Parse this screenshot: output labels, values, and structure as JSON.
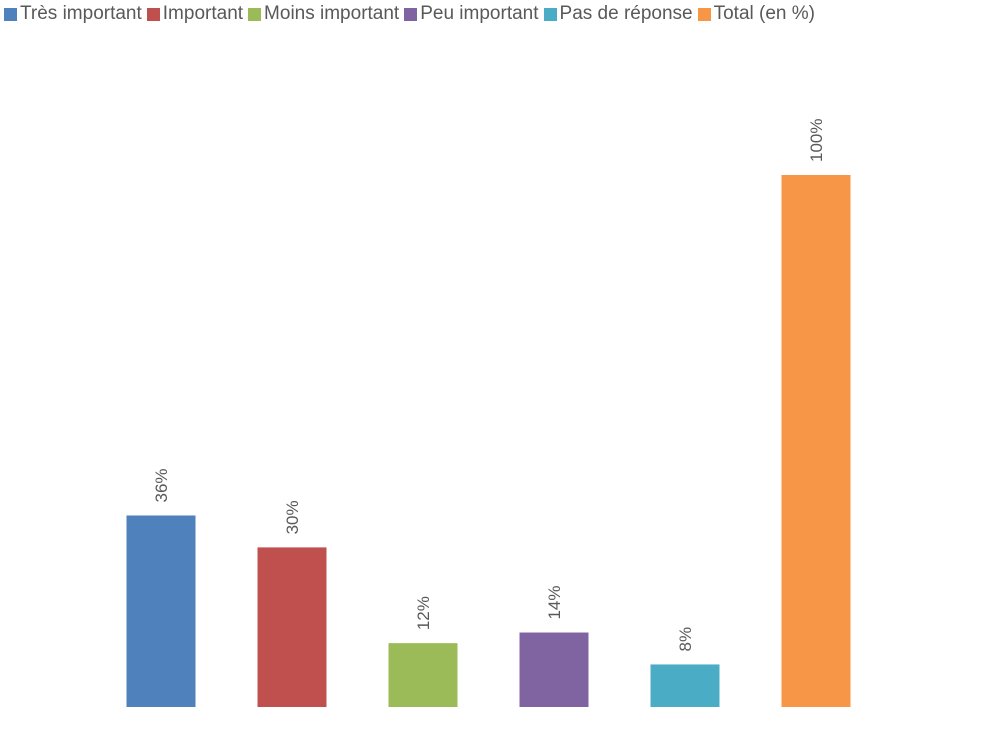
{
  "chart_data": {
    "type": "bar",
    "categories": [
      "Très important",
      "Important",
      "Moins important",
      "Peu important",
      "Pas de réponse",
      "Total (en %)"
    ],
    "values": [
      36,
      30,
      12,
      14,
      8,
      100
    ],
    "data_labels": [
      "36%",
      "30%",
      "12%",
      "14%",
      "8%",
      "100%"
    ],
    "colors": [
      "#4F81BD",
      "#C0504D",
      "#9BBB59",
      "#8064A2",
      "#4BACC6",
      "#F79646"
    ],
    "title": "",
    "xlabel": "",
    "ylabel": "",
    "ylim": [
      0,
      100
    ],
    "legend": "top",
    "grid": false,
    "axes_visible": false,
    "label_orientation": "vertical"
  }
}
